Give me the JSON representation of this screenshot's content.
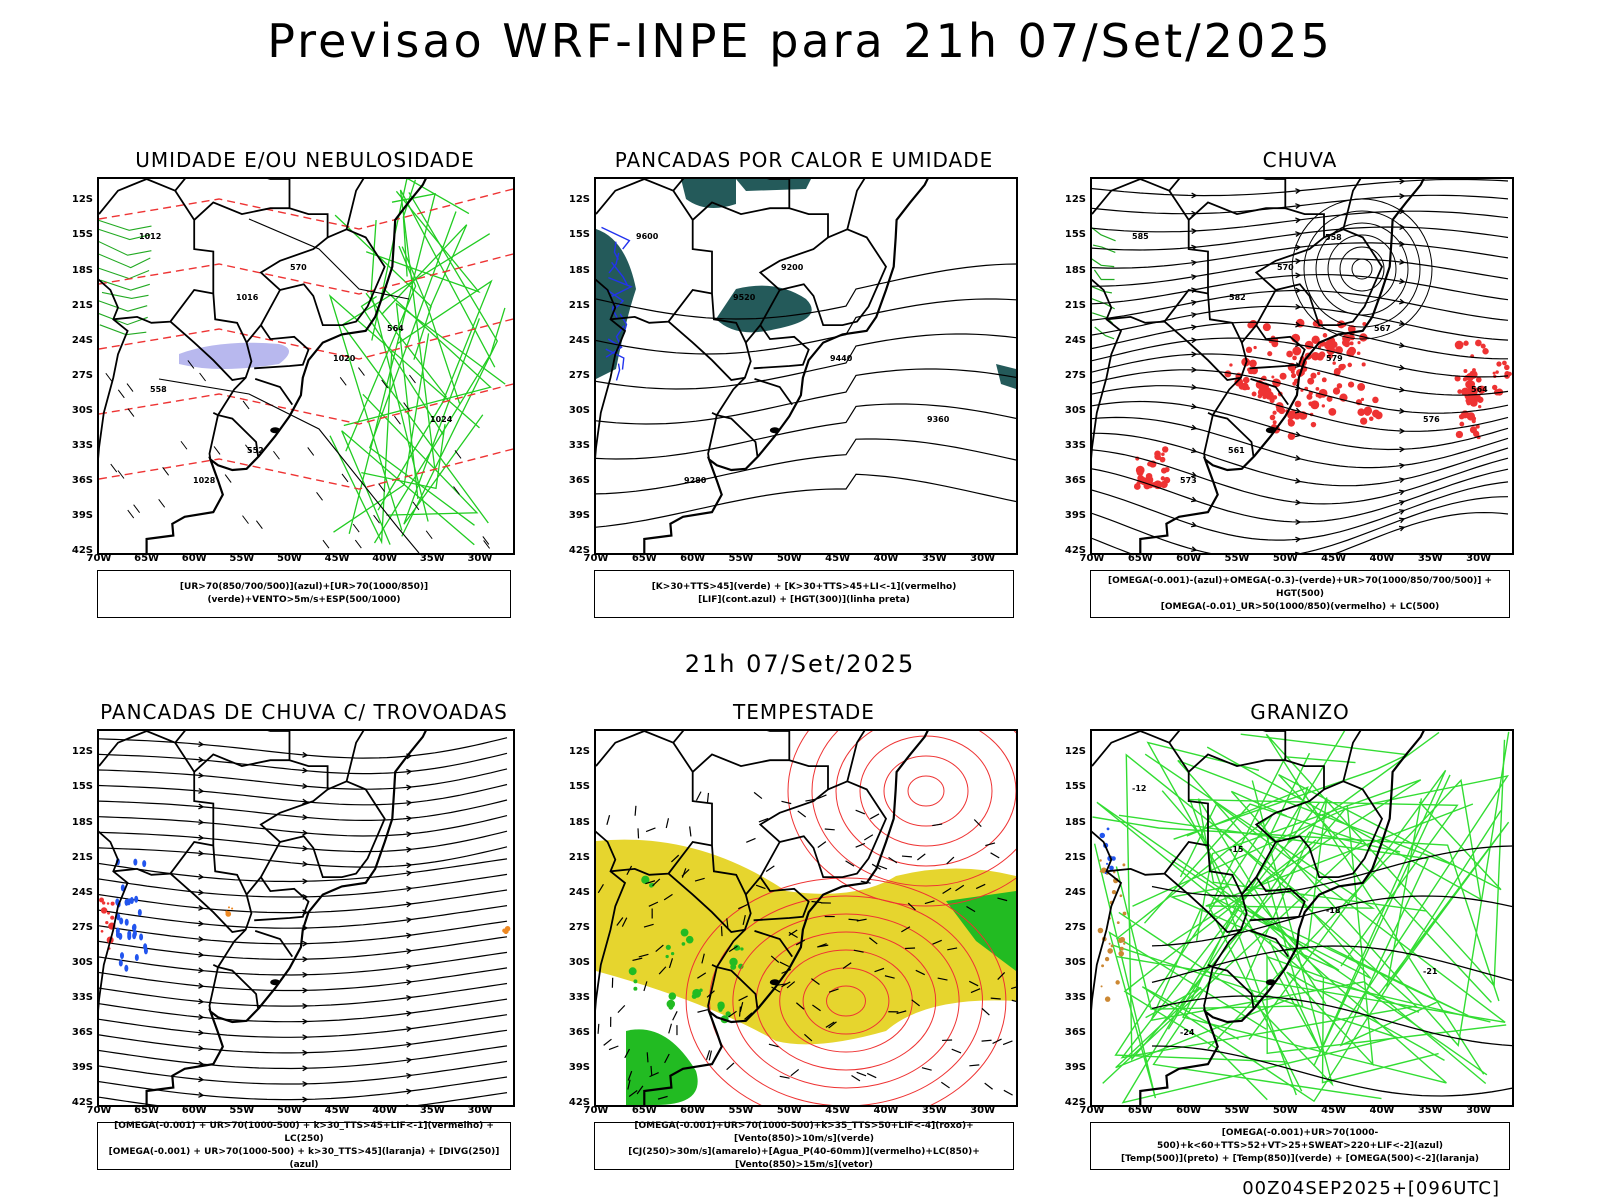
{
  "main_title": "Previsao WRF-INPE  para 21h 07/Set/2025",
  "mid_title": "21h 07/Set/2025",
  "footer": "00Z04SEP2025+[096UTC]",
  "chart_data": [
    {
      "type": "map",
      "title": "UMIDADE E/OU NEBULOSIDADE",
      "legend": [
        "[UR>70(850/700/500)](azul)+[UR>70(1000/850)](verde)+VENTO>5m/s+ESP(500/1000)"
      ],
      "lat_ticks": [
        "12S",
        "15S",
        "18S",
        "21S",
        "24S",
        "27S",
        "30S",
        "33S",
        "36S",
        "39S",
        "42S"
      ],
      "lon_ticks": [
        "70W",
        "65W",
        "60W",
        "55W",
        "50W",
        "45W",
        "40W",
        "35W",
        "30W"
      ],
      "contour_labels": [
        "1012",
        "1016",
        "1020",
        "1024",
        "1028",
        "570",
        "564",
        "558",
        "552"
      ]
    },
    {
      "type": "map",
      "title": "PANCADAS POR CALOR E UMIDADE",
      "legend": [
        "[K>30+TTS>45](verde) + [K>30+TTS>45+LI<-1](vermelho)",
        "[LIF](cont.azul) + [HGT(300)](linha preta)"
      ],
      "lat_ticks": [
        "12S",
        "15S",
        "18S",
        "21S",
        "24S",
        "27S",
        "30S",
        "33S",
        "36S",
        "39S",
        "42S"
      ],
      "lon_ticks": [
        "70W",
        "65W",
        "60W",
        "55W",
        "50W",
        "45W",
        "40W",
        "35W",
        "30W"
      ],
      "contour_labels": [
        "9600",
        "9520",
        "9440",
        "9360",
        "9280",
        "9200"
      ]
    },
    {
      "type": "map",
      "title": "CHUVA",
      "legend": [
        "[OMEGA(-0.001)-(azul)+OMEGA(-0.3)-(verde)+UR>70(1000/850/700/500)] + HGT(500)",
        "[OMEGA(-0.01)_UR>50(1000/850)(vermelho) + LC(500)"
      ],
      "lat_ticks": [
        "12S",
        "15S",
        "18S",
        "21S",
        "24S",
        "27S",
        "30S",
        "33S",
        "36S",
        "39S",
        "42S"
      ],
      "lon_ticks": [
        "70W",
        "65W",
        "60W",
        "55W",
        "50W",
        "45W",
        "40W",
        "35W",
        "30W"
      ],
      "contour_labels": [
        "585",
        "582",
        "579",
        "576",
        "573",
        "570",
        "567",
        "564",
        "561",
        "558"
      ]
    },
    {
      "type": "map",
      "title": "PANCADAS DE CHUVA C/ TROVOADAS",
      "legend": [
        "[OMEGA(-0.001) + UR>70(1000-500) + k>30_TTS>45+LIF<-1](vermelho) + LC(250)",
        "[OMEGA(-0.001) + UR>70(1000-500) + k>30_TTS>45](laranja) + [DIVG(250)](azul)"
      ],
      "lat_ticks": [
        "12S",
        "15S",
        "18S",
        "21S",
        "24S",
        "27S",
        "30S",
        "33S",
        "36S",
        "39S",
        "42S"
      ],
      "lon_ticks": [
        "70W",
        "65W",
        "60W",
        "55W",
        "50W",
        "45W",
        "40W",
        "35W",
        "30W"
      ],
      "contour_labels": []
    },
    {
      "type": "map",
      "title": "TEMPESTADE",
      "legend": [
        "[OMEGA(-0.001)+UR>70(1000-500)+k>35_TTS>50+LIF<-4](roxo)+[Vento(850)>10m/s](verde)",
        "[CJ(250)>30m/s](amarelo)+[Agua_P(40-60mm)](vermelho)+LC(850)+[Vento(850)>15m/s](vetor)"
      ],
      "lat_ticks": [
        "12S",
        "15S",
        "18S",
        "21S",
        "24S",
        "27S",
        "30S",
        "33S",
        "36S",
        "39S",
        "42S"
      ],
      "lon_ticks": [
        "70W",
        "65W",
        "60W",
        "55W",
        "50W",
        "45W",
        "40W",
        "35W",
        "30W"
      ],
      "contour_labels": []
    },
    {
      "type": "map",
      "title": "GRANIZO",
      "legend": [
        "[OMEGA(-0.001)+UR>70(1000-500)+k<60+TTS>52+VT>25+SWEAT>220+LIF<-2](azul)",
        "[Temp(500)](preto) + [Temp(850)](verde) + [OMEGA(500)<-2](laranja)"
      ],
      "lat_ticks": [
        "12S",
        "15S",
        "18S",
        "21S",
        "24S",
        "27S",
        "30S",
        "33S",
        "36S",
        "39S",
        "42S"
      ],
      "lon_ticks": [
        "70W",
        "65W",
        "60W",
        "55W",
        "50W",
        "45W",
        "40W",
        "35W",
        "30W"
      ],
      "contour_labels": [
        "-12",
        "-15",
        "-18",
        "-21",
        "-24"
      ]
    }
  ]
}
